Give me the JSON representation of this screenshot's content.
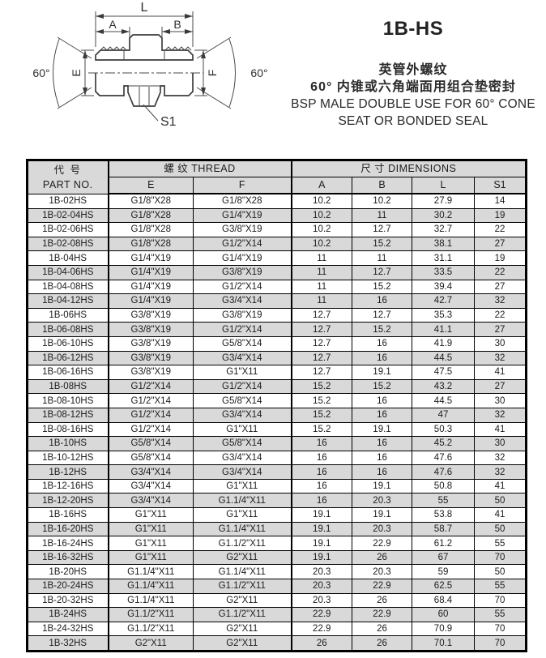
{
  "header": {
    "product_code": "1B-HS",
    "description_zh_1": "英管外螺纹",
    "description_zh_2": "60° 内锥或六角端面用组合垫密封",
    "description_en_1": "BSP MALE DOUBLE USE FOR 60° CONE",
    "description_en_2": "SEAT OR BONDED SEAL"
  },
  "diagram": {
    "labels": {
      "length": "L",
      "a": "A",
      "b": "B",
      "e": "E",
      "f": "F",
      "s1": "S1",
      "angle_left": "60°",
      "angle_right": "60°"
    }
  },
  "table": {
    "header": {
      "part_no_zh": "代 号",
      "part_no_en": "PART NO.",
      "thread_group": "螺 纹   THREAD",
      "dimensions_group": "尺 寸   DIMENSIONS",
      "sub_columns": [
        "E",
        "F",
        "A",
        "B",
        "L",
        "S1"
      ]
    },
    "rows": [
      [
        "1B-02HS",
        "G1/8\"X28",
        "G1/8\"X28",
        "10.2",
        "10.2",
        "27.9",
        "14"
      ],
      [
        "1B-02-04HS",
        "G1/8\"X28",
        "G1/4\"X19",
        "10.2",
        "11",
        "30.2",
        "19"
      ],
      [
        "1B-02-06HS",
        "G1/8\"X28",
        "G3/8\"X19",
        "10.2",
        "12.7",
        "32.7",
        "22"
      ],
      [
        "1B-02-08HS",
        "G1/8\"X28",
        "G1/2\"X14",
        "10.2",
        "15.2",
        "38.1",
        "27"
      ],
      [
        "1B-04HS",
        "G1/4\"X19",
        "G1/4\"X19",
        "11",
        "11",
        "31.1",
        "19"
      ],
      [
        "1B-04-06HS",
        "G1/4\"X19",
        "G3/8\"X19",
        "11",
        "12.7",
        "33.5",
        "22"
      ],
      [
        "1B-04-08HS",
        "G1/4\"X19",
        "G1/2\"X14",
        "11",
        "15.2",
        "39.4",
        "27"
      ],
      [
        "1B-04-12HS",
        "G1/4\"X19",
        "G3/4\"X14",
        "11",
        "16",
        "42.7",
        "32"
      ],
      [
        "1B-06HS",
        "G3/8\"X19",
        "G3/8\"X19",
        "12.7",
        "12.7",
        "35.3",
        "22"
      ],
      [
        "1B-06-08HS",
        "G3/8\"X19",
        "G1/2\"X14",
        "12.7",
        "15.2",
        "41.1",
        "27"
      ],
      [
        "1B-06-10HS",
        "G3/8\"X19",
        "G5/8\"X14",
        "12.7",
        "16",
        "41.9",
        "30"
      ],
      [
        "1B-06-12HS",
        "G3/8\"X19",
        "G3/4\"X14",
        "12.7",
        "16",
        "44.5",
        "32"
      ],
      [
        "1B-06-16HS",
        "G3/8\"X19",
        "G1\"X11",
        "12.7",
        "19.1",
        "47.5",
        "41"
      ],
      [
        "1B-08HS",
        "G1/2\"X14",
        "G1/2\"X14",
        "15.2",
        "15.2",
        "43.2",
        "27"
      ],
      [
        "1B-08-10HS",
        "G1/2\"X14",
        "G5/8\"X14",
        "15.2",
        "16",
        "44.5",
        "30"
      ],
      [
        "1B-08-12HS",
        "G1/2\"X14",
        "G3/4\"X14",
        "15.2",
        "16",
        "47",
        "32"
      ],
      [
        "1B-08-16HS",
        "G1/2\"X14",
        "G1\"X11",
        "15.2",
        "19.1",
        "50.3",
        "41"
      ],
      [
        "1B-10HS",
        "G5/8\"X14",
        "G5/8\"X14",
        "16",
        "16",
        "45.2",
        "30"
      ],
      [
        "1B-10-12HS",
        "G5/8\"X14",
        "G3/4\"X14",
        "16",
        "16",
        "47.6",
        "32"
      ],
      [
        "1B-12HS",
        "G3/4\"X14",
        "G3/4\"X14",
        "16",
        "16",
        "47.6",
        "32"
      ],
      [
        "1B-12-16HS",
        "G3/4\"X14",
        "G1\"X11",
        "16",
        "19.1",
        "50.8",
        "41"
      ],
      [
        "1B-12-20HS",
        "G3/4\"X14",
        "G1.1/4\"X11",
        "16",
        "20.3",
        "55",
        "50"
      ],
      [
        "1B-16HS",
        "G1\"X11",
        "G1\"X11",
        "19.1",
        "19.1",
        "53.8",
        "41"
      ],
      [
        "1B-16-20HS",
        "G1\"X11",
        "G1.1/4\"X11",
        "19.1",
        "20.3",
        "58.7",
        "50"
      ],
      [
        "1B-16-24HS",
        "G1\"X11",
        "G1.1/2\"X11",
        "19.1",
        "22.9",
        "61.2",
        "55"
      ],
      [
        "1B-16-32HS",
        "G1\"X11",
        "G2\"X11",
        "19.1",
        "26",
        "67",
        "70"
      ],
      [
        "1B-20HS",
        "G1.1/4\"X11",
        "G1.1/4\"X11",
        "20.3",
        "20.3",
        "59",
        "50"
      ],
      [
        "1B-20-24HS",
        "G1.1/4\"X11",
        "G1.1/2\"X11",
        "20.3",
        "22.9",
        "62.5",
        "55"
      ],
      [
        "1B-20-32HS",
        "G1.1/4\"X11",
        "G2\"X11",
        "20.3",
        "26",
        "68.4",
        "70"
      ],
      [
        "1B-24HS",
        "G1.1/2\"X11",
        "G1.1/2\"X11",
        "22.9",
        "22.9",
        "60",
        "55"
      ],
      [
        "1B-24-32HS",
        "G1.1/2\"X11",
        "G2\"X11",
        "22.9",
        "26",
        "70.9",
        "70"
      ],
      [
        "1B-32HS",
        "G2\"X11",
        "G2\"X11",
        "26",
        "26",
        "70.1",
        "70"
      ]
    ]
  },
  "colors": {
    "header_bg": "#d9d9d9",
    "alt_row_bg": "#d9d9d9",
    "border": "#000000"
  }
}
